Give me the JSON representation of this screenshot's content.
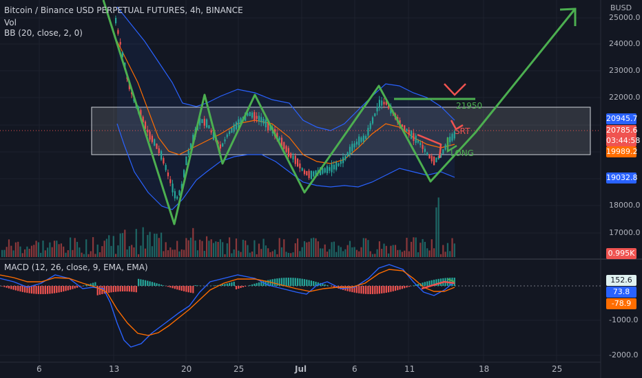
{
  "header": {
    "symbol_line": "Bitcoin / Binance USD PERPETUAL FUTURES, 4h, BINANCE",
    "vol_label": "Vol",
    "bb_label": "BB (20, close, 2, 0)",
    "macd_label": "MACD (12, 26, close, 9, EMA, EMA)",
    "currency": "BUSD"
  },
  "colors": {
    "background": "#131722",
    "up": "#26a69a",
    "down": "#ef5350",
    "bb": "#2962ff",
    "drawing_green": "#4caf50",
    "drawing_red": "#f05350",
    "macd_line": "#2962ff",
    "signal_line": "#ff6d00"
  },
  "price_axis": {
    "ticks": [
      "25000.0",
      "24000.0",
      "23000.0",
      "22000.0",
      "18000.0",
      "17000.0"
    ],
    "tags": [
      {
        "text": "20945.7",
        "color": "#2962ff"
      },
      {
        "text": "20785.6",
        "color": "#ef5350"
      },
      {
        "text": "03:44:58",
        "color": "#ef5350"
      },
      {
        "text": "19989.2",
        "color": "#ff6d00"
      },
      {
        "text": "19032.8",
        "color": "#2962ff"
      },
      {
        "text": "0.995K",
        "color": "#ef5350"
      }
    ]
  },
  "macd_axis": {
    "ticks": [
      "-1000.0",
      "-2000.0"
    ],
    "tags": [
      {
        "text": "152.6",
        "color": "#26a69a"
      },
      {
        "text": "73.8",
        "color": "#2962ff"
      },
      {
        "text": "-78.9",
        "color": "#ff6d00"
      }
    ]
  },
  "time_axis": {
    "labels": [
      "6",
      "13",
      "20",
      "25",
      "Jul",
      "6",
      "11",
      "18",
      "25"
    ]
  },
  "annotations": {
    "level": "21950",
    "short": "SRT",
    "long": "LONG"
  }
}
